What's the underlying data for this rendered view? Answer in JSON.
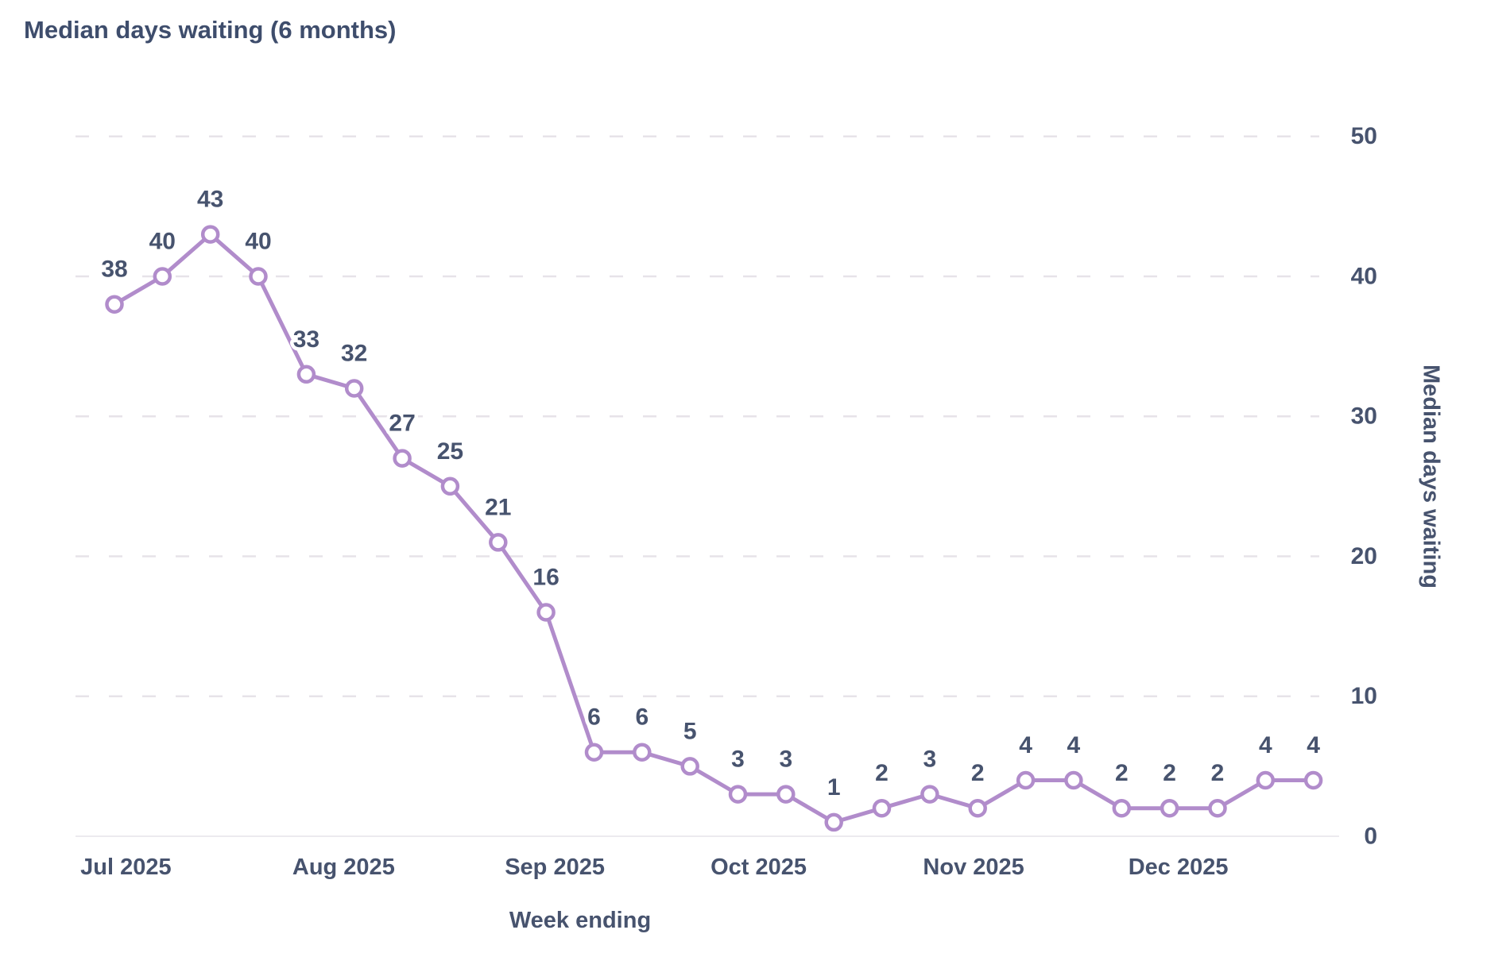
{
  "chart": {
    "title": "Median days waiting (6 months)",
    "x_axis_title": "Week ending",
    "y_axis_title": "Median days waiting"
  },
  "chart_data": {
    "type": "line",
    "title": "Median days waiting (6 months)",
    "xlabel": "Week ending",
    "ylabel": "Median days waiting",
    "series": [
      {
        "name": "Median days waiting",
        "values": [
          38,
          40,
          43,
          40,
          33,
          32,
          27,
          25,
          21,
          16,
          6,
          6,
          5,
          3,
          3,
          1,
          2,
          3,
          2,
          4,
          4,
          2,
          2,
          2,
          4,
          4
        ]
      }
    ],
    "point_labels_shown": true,
    "x_tick_labels": [
      "Jul 2025",
      "Aug 2025",
      "Sep 2025",
      "Oct 2025",
      "Nov 2025",
      "Dec 2025"
    ],
    "x_unit": "week",
    "n_points": 26,
    "yticks": [
      0,
      10,
      20,
      30,
      40,
      50
    ],
    "ylim": [
      0,
      50
    ],
    "grid": "horizontal-dashed",
    "legend": "none",
    "y_axis_side": "right",
    "layout_hints": {
      "month_tick_offsets_weeks": [
        -0.71,
        3.71,
        8.14,
        12.43,
        16.86,
        21.14
      ]
    },
    "colors": {
      "line": "#b18ccb",
      "marker_fill": "#ffffff",
      "title_text": "#3e4d6c",
      "label_text": "#47536e",
      "grid": "#e7e3e9",
      "axis_line": "#eceaef"
    }
  }
}
